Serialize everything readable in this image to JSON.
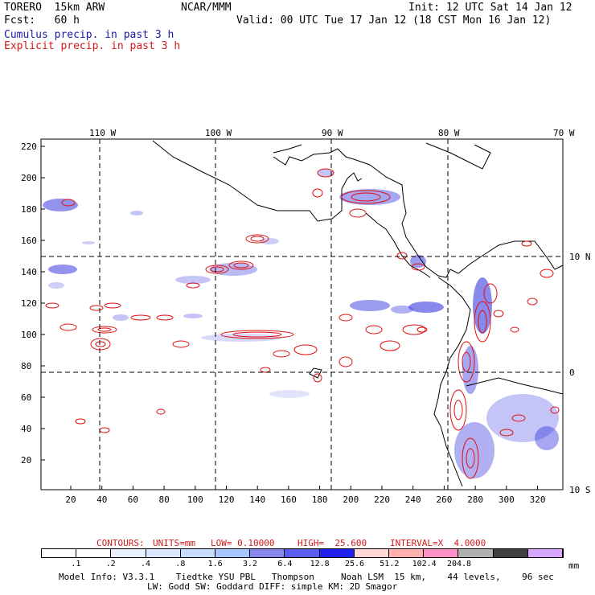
{
  "header": {
    "model": "TORERO  15km ARW",
    "org": "NCAR/MMM",
    "init": "Init: 12 UTC Sat 14 Jan 12",
    "fcst": "Fcst:   60 h",
    "valid": "Valid: 00 UTC Tue 17 Jan 12 (18 CST Mon 16 Jan 12)",
    "field1": "Cumulus precip. in past 3 h",
    "field2": "Explicit precip. in past 3 h"
  },
  "map": {
    "lon_labels": [
      "110 W",
      "100 W",
      "90 W",
      "80 W",
      "70 W"
    ],
    "lat_labels": [
      "10 N",
      "0",
      "10 S"
    ],
    "y_ticks": [
      "220",
      "200",
      "180",
      "160",
      "140",
      "120",
      "100",
      "80",
      "60",
      "40",
      "20"
    ],
    "x_ticks": [
      "20",
      "40",
      "60",
      "80",
      "100",
      "120",
      "140",
      "160",
      "180",
      "200",
      "220",
      "240",
      "260",
      "280",
      "300",
      "320"
    ],
    "colors": {
      "coast": "#000000",
      "grid": "#000000",
      "contour": "#e01010",
      "precip": "#3a3ae0"
    }
  },
  "contours_line": {
    "label": "CONTOURS:",
    "units": "UNITS=mm",
    "low": "LOW= 0.10000",
    "high": "HIGH=  25.600",
    "interval": "INTERVAL=X  4.0000"
  },
  "colorbar": {
    "labels": [
      ".1",
      ".2",
      ".4",
      ".8",
      "1.6",
      "3.2",
      "6.4",
      "12.8",
      "25.6",
      "51.2",
      "102.4",
      "204.8"
    ],
    "unit": "mm",
    "colors": [
      "#ffffff",
      "#ffffff",
      "#e9f1ff",
      "#dce9ff",
      "#c6dcff",
      "#a9c6ff",
      "#8787ee",
      "#5c5cee",
      "#2020ee",
      "#ffd6d6",
      "#ffb0b0",
      "#ff90c8",
      "#b0b0b0",
      "#404040",
      "#d8a8ff"
    ]
  },
  "footer": {
    "line1": "Model Info: V3.3.1    Tiedtke YSU PBL   Thompson     Noah LSM  15 km,    44 levels,    96 sec",
    "line2": "LW: Godd SW: Goddard DIFF: simple KM: 2D Smagor"
  }
}
